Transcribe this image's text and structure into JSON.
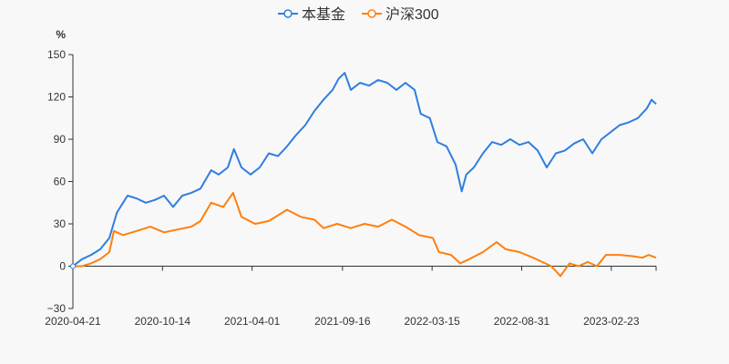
{
  "chart_data": {
    "type": "line",
    "title": "",
    "ylabel": "%",
    "xlabel": "",
    "ylim": [
      -30,
      150
    ],
    "yticks": [
      -30,
      0,
      30,
      60,
      90,
      120,
      150
    ],
    "xlim": [
      0,
      768
    ],
    "xticks": [
      {
        "x": 0,
        "label": "2020-04-21"
      },
      {
        "x": 118,
        "label": "2020-10-14"
      },
      {
        "x": 236,
        "label": "2021-04-01"
      },
      {
        "x": 355,
        "label": "2021-09-16"
      },
      {
        "x": 473,
        "label": "2022-03-15"
      },
      {
        "x": 591,
        "label": "2022-08-31"
      },
      {
        "x": 709,
        "label": "2023-02-23"
      }
    ],
    "legend_position": "top-center",
    "series": [
      {
        "name": "本基金",
        "color": "#2f7ee0",
        "points": [
          [
            0,
            0
          ],
          [
            12,
            5
          ],
          [
            24,
            8
          ],
          [
            36,
            12
          ],
          [
            48,
            20
          ],
          [
            58,
            38
          ],
          [
            66,
            45
          ],
          [
            72,
            50
          ],
          [
            84,
            48
          ],
          [
            96,
            45
          ],
          [
            108,
            47
          ],
          [
            120,
            50
          ],
          [
            132,
            42
          ],
          [
            144,
            50
          ],
          [
            156,
            52
          ],
          [
            168,
            55
          ],
          [
            182,
            68
          ],
          [
            192,
            65
          ],
          [
            204,
            70
          ],
          [
            212,
            83
          ],
          [
            222,
            70
          ],
          [
            234,
            65
          ],
          [
            246,
            70
          ],
          [
            258,
            80
          ],
          [
            270,
            78
          ],
          [
            282,
            85
          ],
          [
            294,
            93
          ],
          [
            306,
            100
          ],
          [
            318,
            110
          ],
          [
            330,
            118
          ],
          [
            342,
            125
          ],
          [
            350,
            133
          ],
          [
            358,
            137
          ],
          [
            366,
            125
          ],
          [
            378,
            130
          ],
          [
            390,
            128
          ],
          [
            402,
            132
          ],
          [
            414,
            130
          ],
          [
            426,
            125
          ],
          [
            438,
            130
          ],
          [
            450,
            125
          ],
          [
            458,
            108
          ],
          [
            470,
            105
          ],
          [
            480,
            88
          ],
          [
            492,
            85
          ],
          [
            504,
            72
          ],
          [
            512,
            53
          ],
          [
            518,
            65
          ],
          [
            528,
            70
          ],
          [
            540,
            80
          ],
          [
            552,
            88
          ],
          [
            564,
            86
          ],
          [
            576,
            90
          ],
          [
            588,
            86
          ],
          [
            600,
            88
          ],
          [
            612,
            82
          ],
          [
            624,
            70
          ],
          [
            636,
            80
          ],
          [
            648,
            82
          ],
          [
            660,
            87
          ],
          [
            672,
            90
          ],
          [
            684,
            80
          ],
          [
            696,
            90
          ],
          [
            708,
            95
          ],
          [
            720,
            100
          ],
          [
            732,
            102
          ],
          [
            744,
            105
          ],
          [
            756,
            112
          ],
          [
            762,
            118
          ],
          [
            768,
            115
          ]
        ]
      },
      {
        "name": "沪深300",
        "color": "#ff7f0e",
        "points": [
          [
            0,
            0
          ],
          [
            12,
            0
          ],
          [
            24,
            2
          ],
          [
            36,
            5
          ],
          [
            48,
            10
          ],
          [
            54,
            25
          ],
          [
            66,
            22
          ],
          [
            84,
            25
          ],
          [
            102,
            28
          ],
          [
            120,
            24
          ],
          [
            138,
            26
          ],
          [
            156,
            28
          ],
          [
            168,
            32
          ],
          [
            182,
            45
          ],
          [
            198,
            42
          ],
          [
            211,
            52
          ],
          [
            222,
            35
          ],
          [
            240,
            30
          ],
          [
            258,
            32
          ],
          [
            282,
            40
          ],
          [
            300,
            35
          ],
          [
            318,
            33
          ],
          [
            330,
            27
          ],
          [
            348,
            30
          ],
          [
            366,
            27
          ],
          [
            384,
            30
          ],
          [
            402,
            28
          ],
          [
            420,
            33
          ],
          [
            438,
            28
          ],
          [
            456,
            22
          ],
          [
            474,
            20
          ],
          [
            482,
            10
          ],
          [
            498,
            8
          ],
          [
            510,
            2
          ],
          [
            522,
            5
          ],
          [
            540,
            10
          ],
          [
            558,
            17
          ],
          [
            570,
            12
          ],
          [
            588,
            10
          ],
          [
            606,
            6
          ],
          [
            618,
            3
          ],
          [
            630,
            0
          ],
          [
            642,
            -7
          ],
          [
            654,
            2
          ],
          [
            666,
            0
          ],
          [
            678,
            3
          ],
          [
            690,
            0
          ],
          [
            702,
            8
          ],
          [
            720,
            8
          ],
          [
            738,
            7
          ],
          [
            750,
            6
          ],
          [
            758,
            8
          ],
          [
            768,
            6
          ]
        ]
      }
    ]
  }
}
